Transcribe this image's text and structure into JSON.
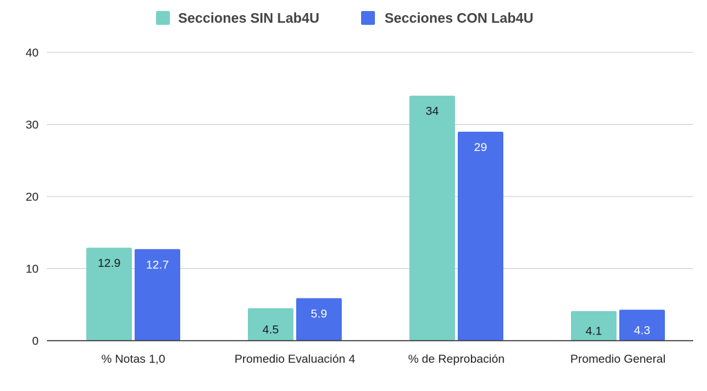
{
  "chart_data": {
    "type": "bar",
    "title": "",
    "xlabel": "",
    "ylabel": "",
    "categories": [
      "% Notas 1,0",
      "Promedio Evaluación 4",
      "% de Reprobación",
      "Promedio General"
    ],
    "series": [
      {
        "name": "Secciones SIN Lab4U",
        "values": [
          12.9,
          4.5,
          34,
          4.1
        ],
        "labels": [
          "12.9",
          "4.5",
          "34",
          "4.1"
        ],
        "color": "#79d0c5",
        "label_color": "#1a1a1a"
      },
      {
        "name": "Secciones CON Lab4U",
        "values": [
          12.7,
          5.9,
          29,
          4.3
        ],
        "labels": [
          "12.7",
          "5.9",
          "29",
          "4.3"
        ],
        "color": "#4a70ec",
        "label_color": "#ffffff"
      }
    ],
    "ylim": [
      0,
      40
    ],
    "yticks": [
      0,
      10,
      20,
      30,
      40
    ],
    "grid": true,
    "legend_position": "top-center"
  }
}
